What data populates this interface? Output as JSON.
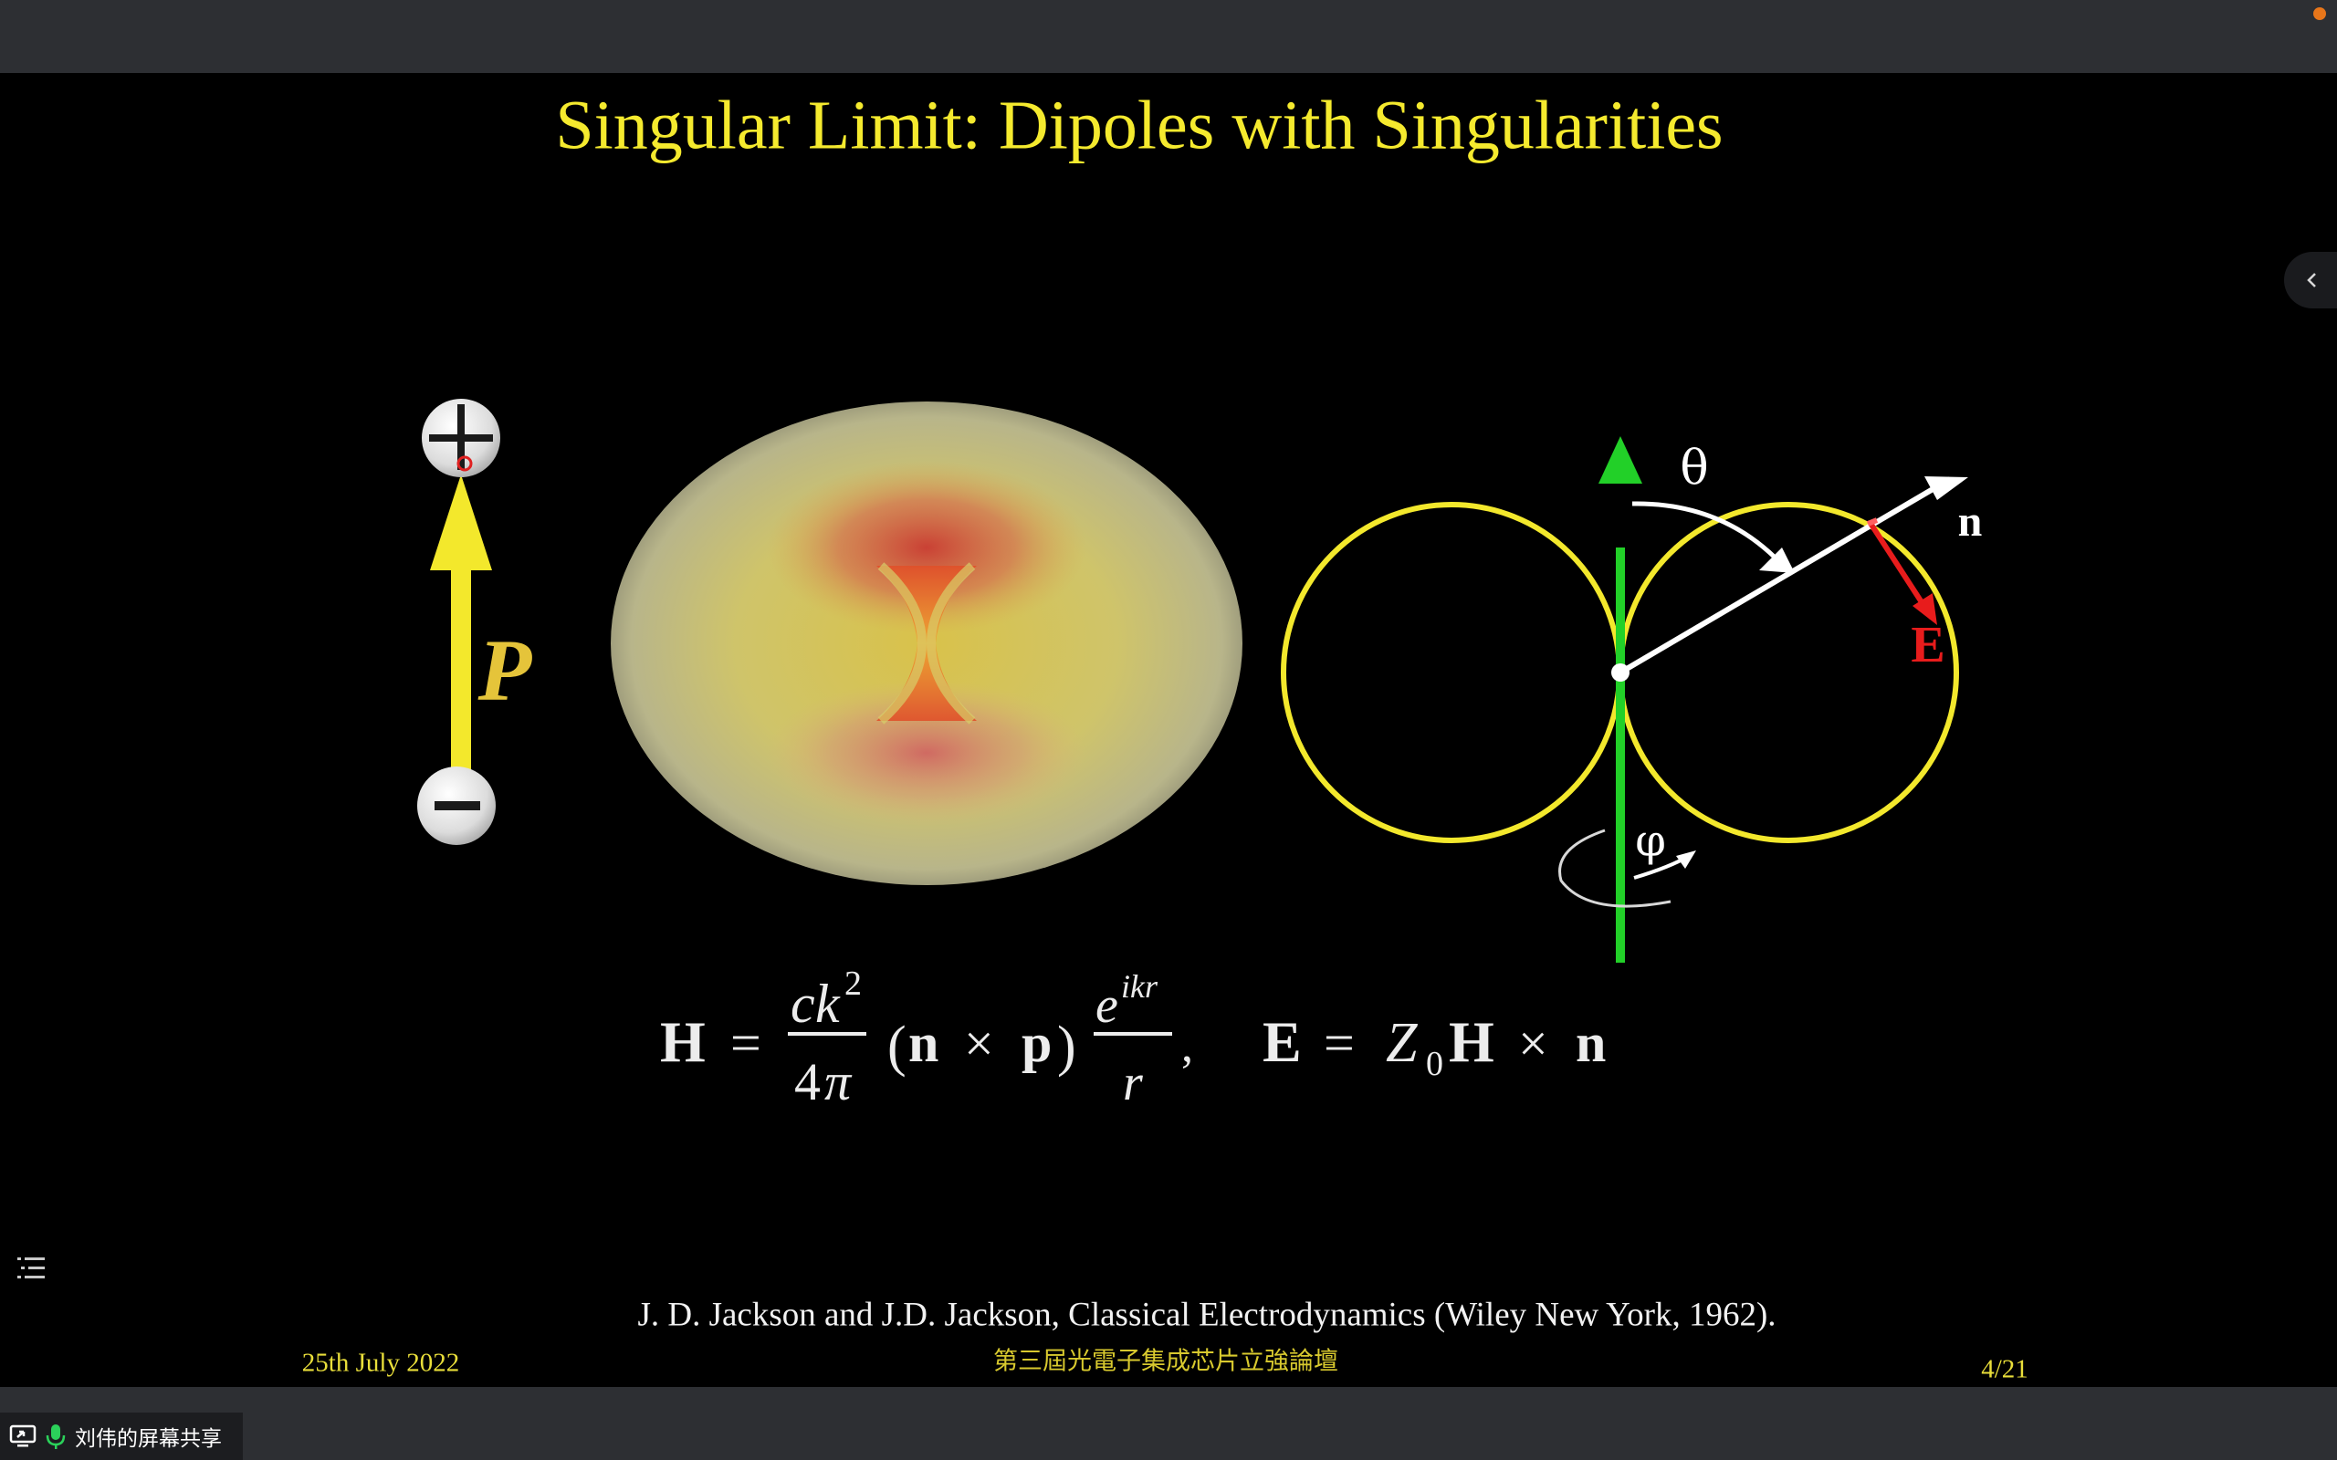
{
  "window": {
    "accent_color": "#e8761a",
    "share_status": "刘伟的屏幕共享",
    "share_icon": "screen-share-icon",
    "mic_icon": "microphone-icon",
    "collapse_icon": "chevron-left-icon",
    "toc_icon": "list-icon"
  },
  "slide": {
    "title": "Singular Limit: Dipoles with Singularities",
    "dipole": {
      "plus_icon": "plus-icon",
      "minus_icon": "minus-icon",
      "p_label": "P"
    },
    "diagram": {
      "theta_label": "θ",
      "n_label": "n",
      "e_label": "E",
      "phi_label": "φ"
    },
    "equation": {
      "H": "H",
      "eq1": "=",
      "num_c": "c",
      "num_k": "k",
      "num_exp": "2",
      "den_4": "4",
      "den_pi": "π",
      "cross_open": "(",
      "cross_n": "n",
      "cross_x": "×",
      "cross_p": "p",
      "cross_close": ")",
      "exp_e": "e",
      "exp_ikr": "ikr",
      "den_r": "r",
      "comma": ",",
      "E": "E",
      "eq2": "=",
      "Z": "Z",
      "Z_sub": "0",
      "H2": "H",
      "x2": "×",
      "n2": "n"
    },
    "reference": "J. D. Jackson and J.D. Jackson, Classical Electrodynamics (Wiley New York, 1962).",
    "date": "25th July 2022",
    "conference": "第三屆光電子集成芯片立強論壇",
    "page_number": "4/21"
  }
}
